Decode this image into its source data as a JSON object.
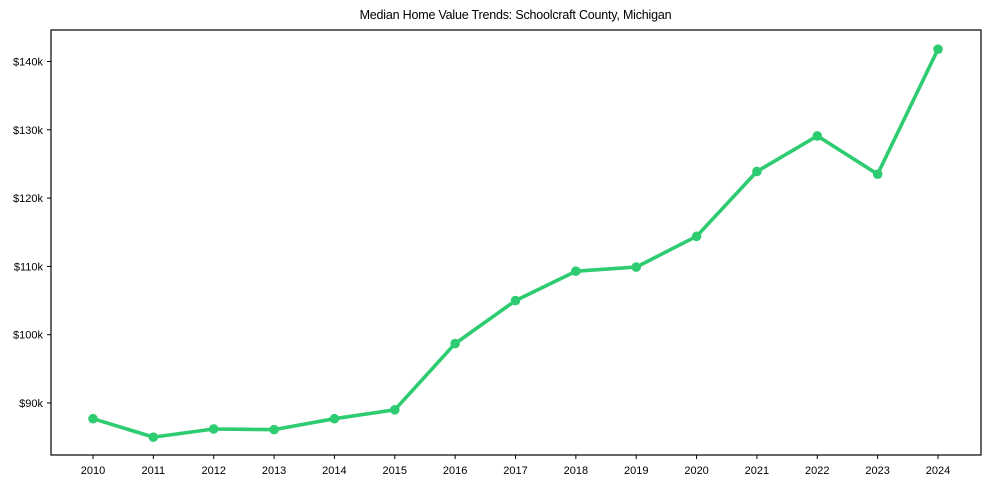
{
  "chart_data": {
    "type": "line",
    "title": "Median Home Value Trends: Schoolcraft County, Michigan",
    "xlabel": "",
    "ylabel": "",
    "categories": [
      "2010",
      "2011",
      "2012",
      "2013",
      "2014",
      "2015",
      "2016",
      "2017",
      "2018",
      "2019",
      "2020",
      "2021",
      "2022",
      "2023",
      "2024"
    ],
    "series": [
      {
        "name": "Median Home Value",
        "color": "#2ecc71",
        "values": [
          87700,
          85000,
          86200,
          86100,
          87700,
          89000,
          98700,
          105000,
          109300,
          109900,
          114400,
          123900,
          129100,
          123500,
          141800
        ]
      }
    ],
    "y_ticks": [
      90000,
      100000,
      110000,
      120000,
      130000,
      140000
    ],
    "y_tick_labels": [
      "$90k",
      "$100k",
      "$110k",
      "$120k",
      "$130k",
      "$140k"
    ],
    "ylim": [
      82200,
      144500
    ],
    "grid": false,
    "legend": "none",
    "marker": "circle"
  }
}
